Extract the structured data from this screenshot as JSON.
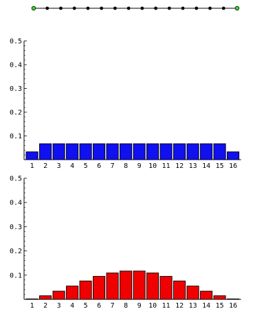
{
  "chart_data": [
    {
      "type": "line",
      "role": "path-graph",
      "nodes": 16,
      "endpoint_color": "#33dd33",
      "node_color": "#000000"
    },
    {
      "type": "bar",
      "categories": [
        "1",
        "2",
        "3",
        "4",
        "5",
        "6",
        "7",
        "8",
        "9",
        "10",
        "11",
        "12",
        "13",
        "14",
        "15",
        "16"
      ],
      "values": [
        0.033,
        0.067,
        0.067,
        0.067,
        0.067,
        0.067,
        0.067,
        0.067,
        0.067,
        0.067,
        0.067,
        0.067,
        0.067,
        0.067,
        0.067,
        0.033
      ],
      "ylim": [
        0,
        0.5
      ],
      "yticks": [
        "0.1",
        "0.2",
        "0.3",
        "0.4",
        "0.5"
      ],
      "bar_color": "#1010f0"
    },
    {
      "type": "bar",
      "categories": [
        "1",
        "2",
        "3",
        "4",
        "5",
        "6",
        "7",
        "8",
        "9",
        "10",
        "11",
        "12",
        "13",
        "14",
        "15",
        "16"
      ],
      "values": [
        0.002,
        0.015,
        0.034,
        0.055,
        0.076,
        0.095,
        0.109,
        0.117,
        0.117,
        0.109,
        0.095,
        0.076,
        0.055,
        0.034,
        0.015,
        0.002
      ],
      "ylim": [
        0,
        0.5
      ],
      "yticks": [
        "0.1",
        "0.2",
        "0.3",
        "0.4",
        "0.5"
      ],
      "bar_color": "#f00000"
    }
  ]
}
